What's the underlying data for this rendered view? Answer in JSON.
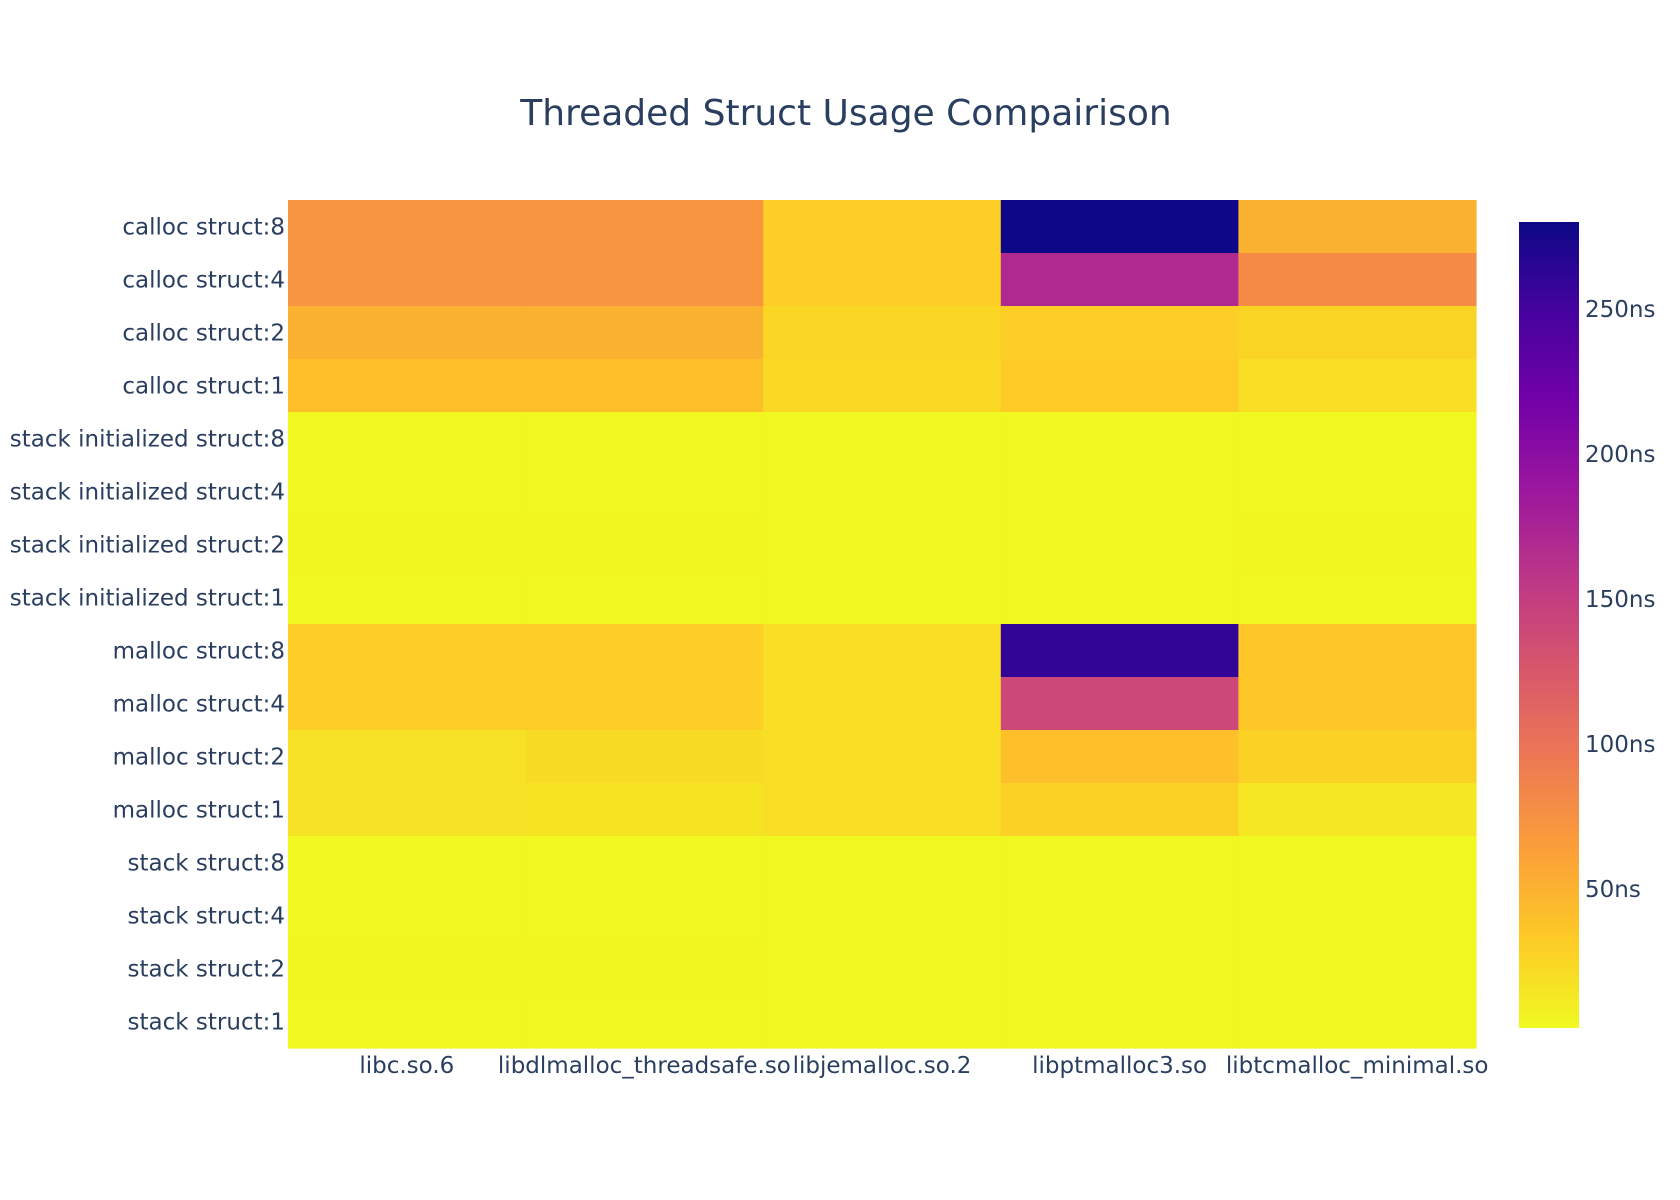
{
  "chart_data": {
    "type": "heatmap",
    "title": "Threaded Struct Usage Compairison",
    "x": [
      "libc.so.6",
      "libdlmalloc_threadsafe.so",
      "libjemalloc.so.2",
      "libptmalloc3.so",
      "libtcmalloc_minimal.so"
    ],
    "y": [
      "calloc struct:8",
      "calloc struct:4",
      "calloc struct:2",
      "calloc struct:1",
      "stack initialized struct:8",
      "stack initialized struct:4",
      "stack initialized struct:2",
      "stack initialized struct:1",
      "malloc struct:8",
      "malloc struct:4",
      "malloc struct:2",
      "malloc struct:1",
      "stack struct:8",
      "stack struct:4",
      "stack struct:2",
      "stack struct:1"
    ],
    "z": [
      [
        72,
        72,
        30,
        280,
        50
      ],
      [
        72,
        72,
        30,
        170,
        80
      ],
      [
        50,
        50,
        25,
        30,
        26
      ],
      [
        40,
        40,
        23,
        33,
        20
      ],
      [
        3,
        3,
        3,
        3,
        3
      ],
      [
        3,
        3,
        3,
        3,
        3
      ],
      [
        4,
        4,
        3,
        3,
        4
      ],
      [
        3,
        3,
        3,
        3,
        3
      ],
      [
        30,
        30,
        20,
        260,
        35
      ],
      [
        30,
        30,
        20,
        140,
        35
      ],
      [
        18,
        22,
        20,
        40,
        28
      ],
      [
        18,
        16,
        20,
        28,
        14
      ],
      [
        3,
        3,
        3,
        3,
        3
      ],
      [
        3,
        3,
        3,
        3,
        3
      ],
      [
        4,
        4,
        3,
        3,
        3
      ],
      [
        3,
        3,
        3,
        3,
        3
      ]
    ],
    "zrange": [
      2,
      280
    ],
    "colorscale": [
      "#0d0887",
      "#46039f",
      "#7201a8",
      "#9c179e",
      "#bd3786",
      "#d8576b",
      "#ed7953",
      "#fb9f3a",
      "#fdca26",
      "#f0f921"
    ],
    "colorbar": {
      "ticks": [
        50,
        100,
        150,
        200,
        250
      ],
      "ticklabels": [
        "50ns",
        "100ns",
        "150ns",
        "200ns",
        "250ns"
      ]
    }
  }
}
